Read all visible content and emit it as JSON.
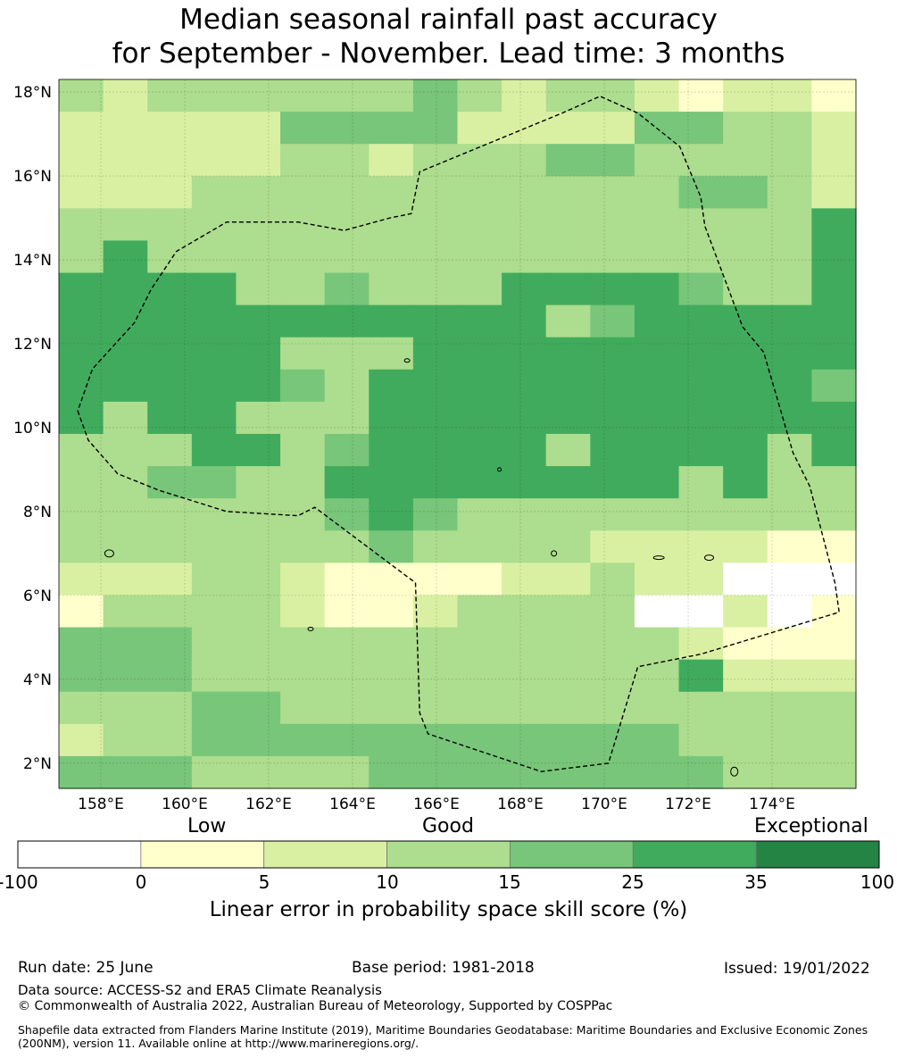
{
  "title": {
    "line1": "Median seasonal rainfall past accuracy",
    "line2": "for September - November. Lead time: 3 months"
  },
  "map": {
    "lat_labels": [
      "18°N",
      "16°N",
      "14°N",
      "12°N",
      "10°N",
      "8°N",
      "6°N",
      "4°N",
      "2°N"
    ],
    "lon_labels": [
      "158°E",
      "160°E",
      "162°E",
      "164°E",
      "166°E",
      "168°E",
      "170°E",
      "172°E",
      "174°E"
    ],
    "lat_range": [
      1.4,
      18.3
    ],
    "lon_range": [
      157.0,
      176.0
    ],
    "lat_ticks": [
      18,
      16,
      14,
      12,
      10,
      8,
      6,
      4,
      2
    ],
    "lon_ticks": [
      158,
      160,
      162,
      164,
      166,
      168,
      170,
      172,
      174
    ],
    "gridlines": true,
    "eez_boundary": [
      [
        157.45,
        10.4
      ],
      [
        157.7,
        9.7
      ],
      [
        158.4,
        8.9
      ],
      [
        159.4,
        8.5
      ],
      [
        161.0,
        8.0
      ],
      [
        162.7,
        7.9
      ],
      [
        163.1,
        8.1
      ],
      [
        165.5,
        6.3
      ],
      [
        165.6,
        3.2
      ],
      [
        165.8,
        2.7
      ],
      [
        168.5,
        1.8
      ],
      [
        170.1,
        2.0
      ],
      [
        170.8,
        4.3
      ],
      [
        172.3,
        4.6
      ],
      [
        175.6,
        5.6
      ],
      [
        175.5,
        6.3
      ],
      [
        174.9,
        8.6
      ],
      [
        174.5,
        9.4
      ],
      [
        173.8,
        11.8
      ],
      [
        173.3,
        12.4
      ],
      [
        172.4,
        14.8
      ],
      [
        172.3,
        15.5
      ],
      [
        171.8,
        16.7
      ],
      [
        170.8,
        17.5
      ],
      [
        169.9,
        17.9
      ],
      [
        169.0,
        17.5
      ],
      [
        165.6,
        16.1
      ],
      [
        165.4,
        15.1
      ],
      [
        164.9,
        15.0
      ],
      [
        163.8,
        14.7
      ],
      [
        162.7,
        14.9
      ],
      [
        161.0,
        14.9
      ],
      [
        159.8,
        14.2
      ],
      [
        159.2,
        13.3
      ],
      [
        158.8,
        12.5
      ],
      [
        157.8,
        11.4
      ],
      [
        157.45,
        10.4
      ]
    ],
    "skill_grid": [
      "323333334323321221",
      "222224444222244332",
      "222223323334433332",
      "222333333333334432",
      "333333333333333335",
      "353333333333333335",
      "555533433355554335",
      "555555555553455555",
      "555553335555555555",
      "555554355555555554",
      "535533355555555555",
      "333553455553555535",
      "334433555555553533",
      "333333454333333333",
      "333333343333222211",
      "222332111122322000",
      "133332112333300201",
      "444333333333332111",
      "444333333333335222",
      "333443333333333333",
      "233444444444443333",
      "444333344444444333"
    ]
  },
  "colorbar": {
    "categories": [
      "Low",
      "Good",
      "Exceptional"
    ],
    "ticks": [
      "-100",
      "0",
      "5",
      "10",
      "15",
      "25",
      "35",
      "100"
    ],
    "axis_label": "Linear error in probability space skill score (%)",
    "colors": [
      "#ffffff",
      "#ffffcc",
      "#d9f0a3",
      "#addd8e",
      "#78c679",
      "#41ab5d",
      "#238443"
    ]
  },
  "footer": {
    "run_date": "Run date: 25 June",
    "base_period": "Base period: 1981-2018",
    "issued": "Issued: 19/01/2022",
    "data_source": "Data source: ACCESS-S2 and ERA5 Climate Reanalysis",
    "copyright": "© Commonwealth of Australia 2022, Australian Bureau of Meteorology, Supported by COSPPac",
    "shapefile_note": "Shapefile data extracted from Flanders Marine Institute (2019), Maritime Boundaries Geodatabase: Maritime Boundaries and Exclusive Economic Zones (200NM), version 11. Available online at http://www.marineregions.org/."
  }
}
